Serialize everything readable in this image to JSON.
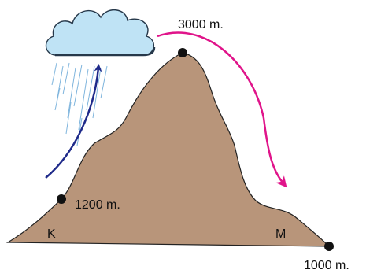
{
  "points": [
    {
      "label": "3000 m."
    },
    {
      "label": "1200 m."
    },
    {
      "label": "1000 m."
    }
  ],
  "regions": [
    "K",
    "M"
  ]
}
